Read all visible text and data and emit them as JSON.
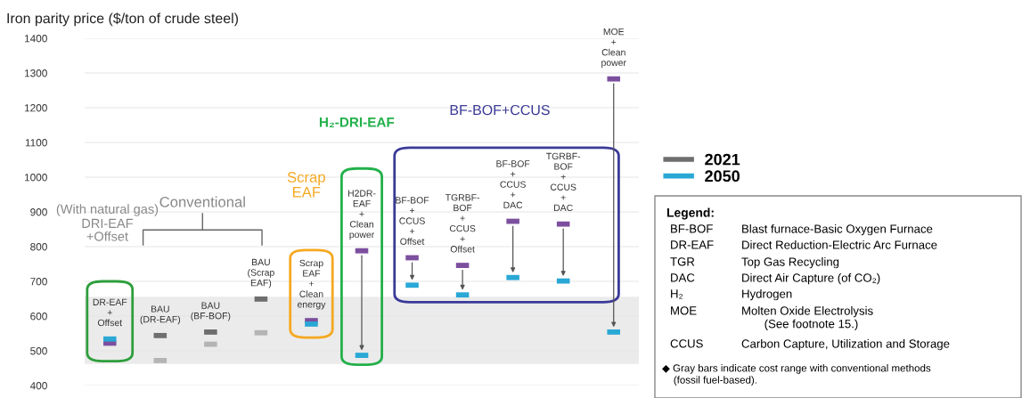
{
  "chart_data": {
    "type": "scatter",
    "ylabel": "Iron parity price ($/ton of crude steel)",
    "categories": [
      "DR-EAF\n+\nOffset",
      "BAU\n(DR-EAF)",
      "BAU\n(BF-BOF)",
      "BAU\n(Scrap\nEAF)",
      "Scrap\nEAF\n+\nClean\nenergy",
      "H2DR-\nEAF\n+\nClean\npower",
      "BF-BOF\n+\nCCUS\n+\nOffset",
      "TGRBF-\nBOF\n+\nCCUS\n+\nOffset",
      "BF-BOF\n+\nCCUS\n+\nDAC",
      "TGRBF-\nBOF\n+\nCCUS\n+\nDAC",
      "MOE\n+\nClean\npower"
    ],
    "series": [
      {
        "name": "2021",
        "color": "#6e6e6e",
        "values": [
          null,
          544,
          554,
          649,
          null,
          null,
          null,
          null,
          null,
          null,
          null
        ]
      },
      {
        "color": "#b4b4b4",
        "values": [
          null,
          472,
          519,
          552,
          null,
          null,
          null,
          null,
          null,
          null,
          null
        ]
      },
      {
        "color": "#7b4f9e",
        "values": [
          522,
          null,
          null,
          null,
          587,
          788,
          768,
          746,
          873,
          865,
          1283
        ]
      },
      {
        "name": "2050",
        "color": "#29a8d6",
        "values": [
          534,
          null,
          null,
          null,
          577,
          487,
          689,
          661,
          711,
          701,
          554
        ]
      }
    ],
    "ylim": [
      400,
      1400
    ],
    "yticks": [
      400,
      500,
      600,
      700,
      800,
      900,
      1000,
      1100,
      1200,
      1300,
      1400
    ],
    "tick_labels": "y",
    "grid": "y",
    "legend": "right",
    "bands": [
      {
        "axis": "y",
        "from": 462,
        "to": 656,
        "color": "#ebebeb"
      }
    ],
    "annotations": [
      "(With natural gas)",
      "DRI-EAF\n+Offset",
      "Conventional",
      "Scrap\nEAF",
      "H₂-DRI-EAF",
      "BF-BOF+CCUS",
      "Legend:",
      "BF-BOF",
      "Blast furnace-Basic Oxygen Furnace",
      "DR-EAF",
      "Direct Reduction-Electric Arc Furnace",
      "TGR",
      "Top Gas Recycling",
      "DAC",
      "Direct Air Capture (of CO₂)",
      "H₂",
      "Hydrogen",
      "MOE",
      "Molten Oxide Electrolysis\n       (See footnote 15.)",
      "CCUS",
      "Carbon Capture, Utilization and Storage",
      "◆ Gray bars indicate cost range with conventional methods\n    (fossil fuel-based)."
    ]
  }
}
